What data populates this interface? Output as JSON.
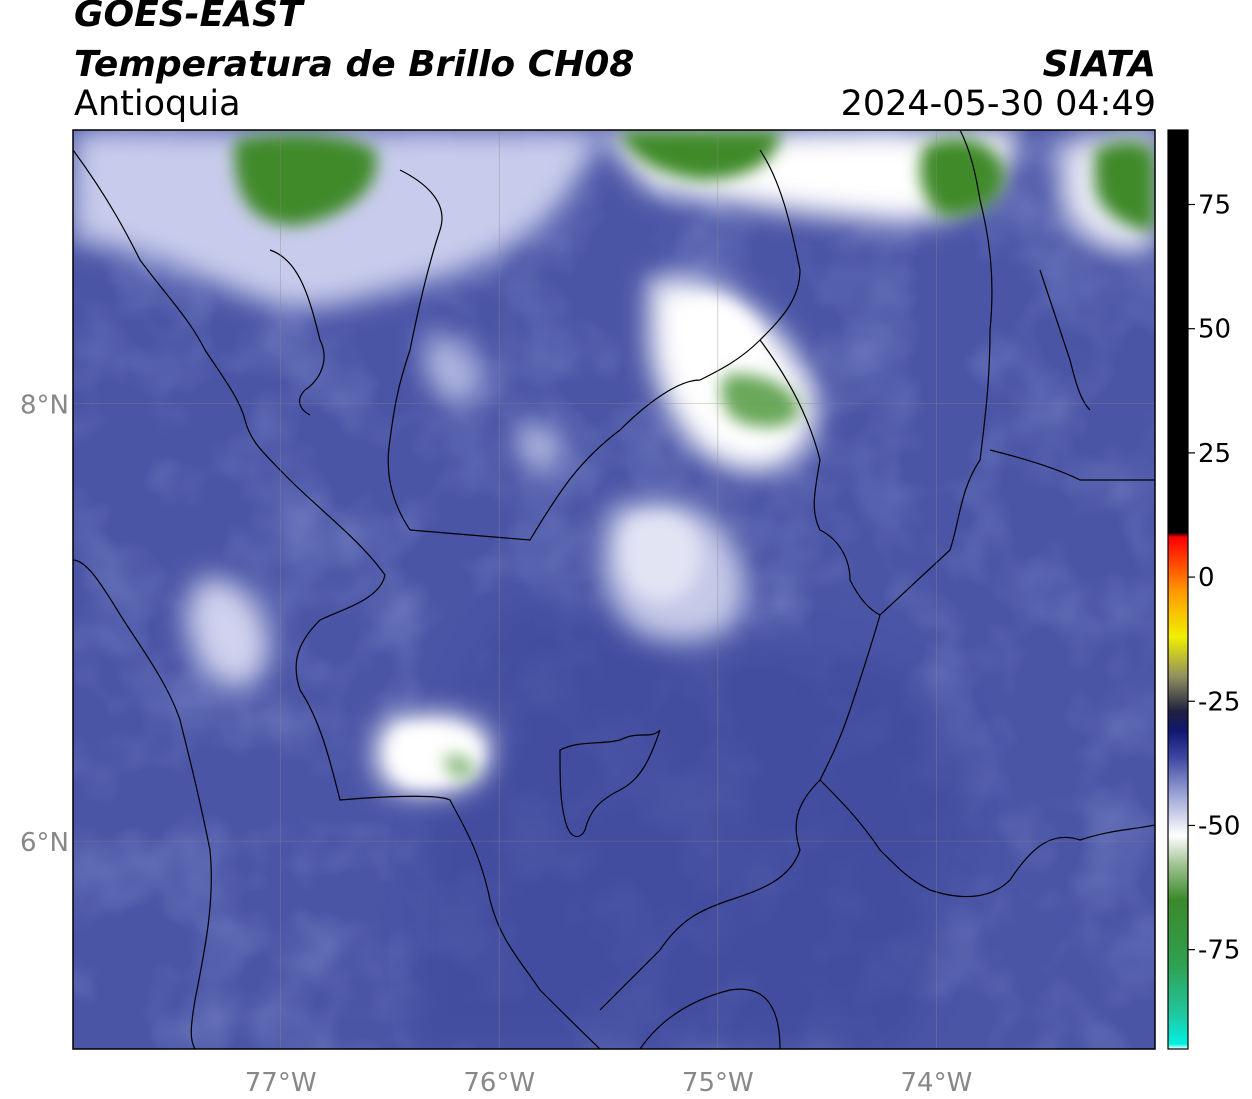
{
  "header": {
    "satellite": "GOES-EAST",
    "product": "Temperatura de Brillo CH08",
    "region": "Antioquia",
    "agency": "SIATA",
    "datetime": "2024-05-30 04:49"
  },
  "map": {
    "lon_range": [
      -77.95,
      -73.0
    ],
    "lat_range": [
      5.05,
      9.25
    ],
    "lon_ticks": [
      {
        "value": -77,
        "label": "77°W"
      },
      {
        "value": -76,
        "label": "76°W"
      },
      {
        "value": -75,
        "label": "75°W"
      },
      {
        "value": -74,
        "label": "74°W"
      }
    ],
    "lat_ticks": [
      {
        "value": 8,
        "label": "8°N"
      },
      {
        "value": 6,
        "label": "6°N"
      }
    ],
    "grid": true,
    "background_color": "#4a55a6"
  },
  "colorbar": {
    "min": -95,
    "max": 90,
    "ticks": [
      {
        "value": 75,
        "label": "75"
      },
      {
        "value": 50,
        "label": "50"
      },
      {
        "value": 25,
        "label": "25"
      },
      {
        "value": 0,
        "label": "0"
      },
      {
        "value": -25,
        "label": "-25"
      },
      {
        "value": -50,
        "label": "-50"
      },
      {
        "value": -75,
        "label": "-75"
      }
    ],
    "stops": [
      {
        "value": -95,
        "color": "#ffffff"
      },
      {
        "value": -94,
        "color": "#00f0e0"
      },
      {
        "value": -88,
        "color": "#20c8a0"
      },
      {
        "value": -78,
        "color": "#30a050"
      },
      {
        "value": -65,
        "color": "#3a8a2a"
      },
      {
        "value": -58,
        "color": "#9ec290"
      },
      {
        "value": -52,
        "color": "#ffffff"
      },
      {
        "value": -44,
        "color": "#9ea6d6"
      },
      {
        "value": -36,
        "color": "#3a44a0"
      },
      {
        "value": -31,
        "color": "#101870"
      },
      {
        "value": -27,
        "color": "#202040"
      },
      {
        "value": -20,
        "color": "#909060"
      },
      {
        "value": -12,
        "color": "#f0f000"
      },
      {
        "value": -3,
        "color": "#ff9a00"
      },
      {
        "value": 8,
        "color": "#ff0000"
      },
      {
        "value": 9,
        "color": "#000000"
      },
      {
        "value": 90,
        "color": "#000000"
      }
    ]
  }
}
